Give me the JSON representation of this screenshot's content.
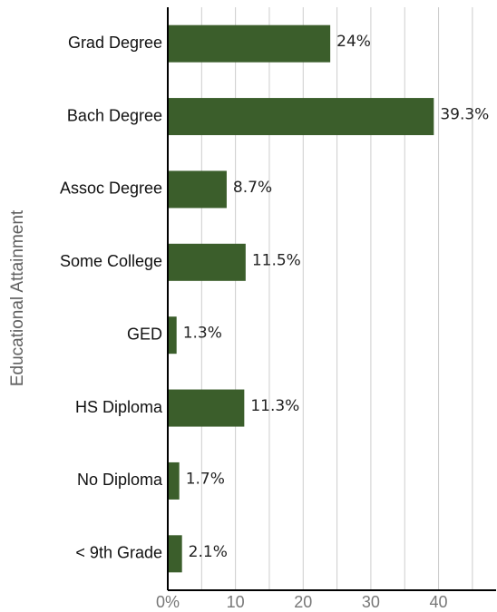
{
  "chart_data": {
    "type": "bar",
    "orientation": "horizontal",
    "title": "",
    "xlabel": "",
    "ylabel": "Educational Attainment",
    "categories": [
      "Grad Degree",
      "Bach Degree",
      "Assoc Degree",
      "Some College",
      "GED",
      "HS Diploma",
      "No Diploma",
      "< 9th Grade"
    ],
    "values": [
      24,
      39.3,
      8.7,
      11.5,
      1.3,
      11.3,
      1.7,
      2.1
    ],
    "value_labels": [
      "24%",
      "39.3%",
      "8.7%",
      "11.5%",
      "1.3%",
      "11.3%",
      "1.7%",
      "2.1%"
    ],
    "xlim": [
      0,
      48.5
    ],
    "x_ticks": [
      0,
      10,
      20,
      30,
      40
    ],
    "x_tick_labels": [
      "0%",
      "10",
      "20",
      "30",
      "40"
    ],
    "grid_step": 5,
    "grid": true,
    "bar_color": "#3b5e2b",
    "grid_color": "#cccccc",
    "axis_color": "#000000"
  }
}
